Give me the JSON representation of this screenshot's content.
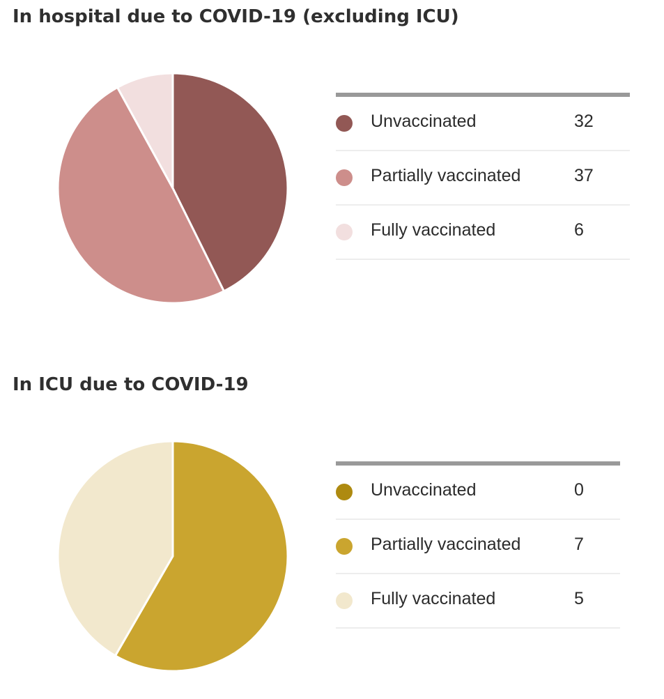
{
  "chart_data": [
    {
      "type": "pie",
      "title": "In hospital due to COVID-19 (excluding ICU)",
      "categories": [
        "Unvaccinated",
        "Partially vaccinated",
        "Fully vaccinated"
      ],
      "values": [
        32,
        37,
        6
      ],
      "colors": [
        "#925855",
        "#cd8e8b",
        "#f2dfdf"
      ],
      "legend": "right"
    },
    {
      "type": "pie",
      "title": "In ICU due to COVID-19",
      "categories": [
        "Unvaccinated",
        "Partially vaccinated",
        "Fully vaccinated"
      ],
      "values": [
        0,
        7,
        5
      ],
      "colors": [
        "#ae8a10",
        "#caa52f",
        "#f2e8cd"
      ],
      "legend": "right"
    }
  ]
}
